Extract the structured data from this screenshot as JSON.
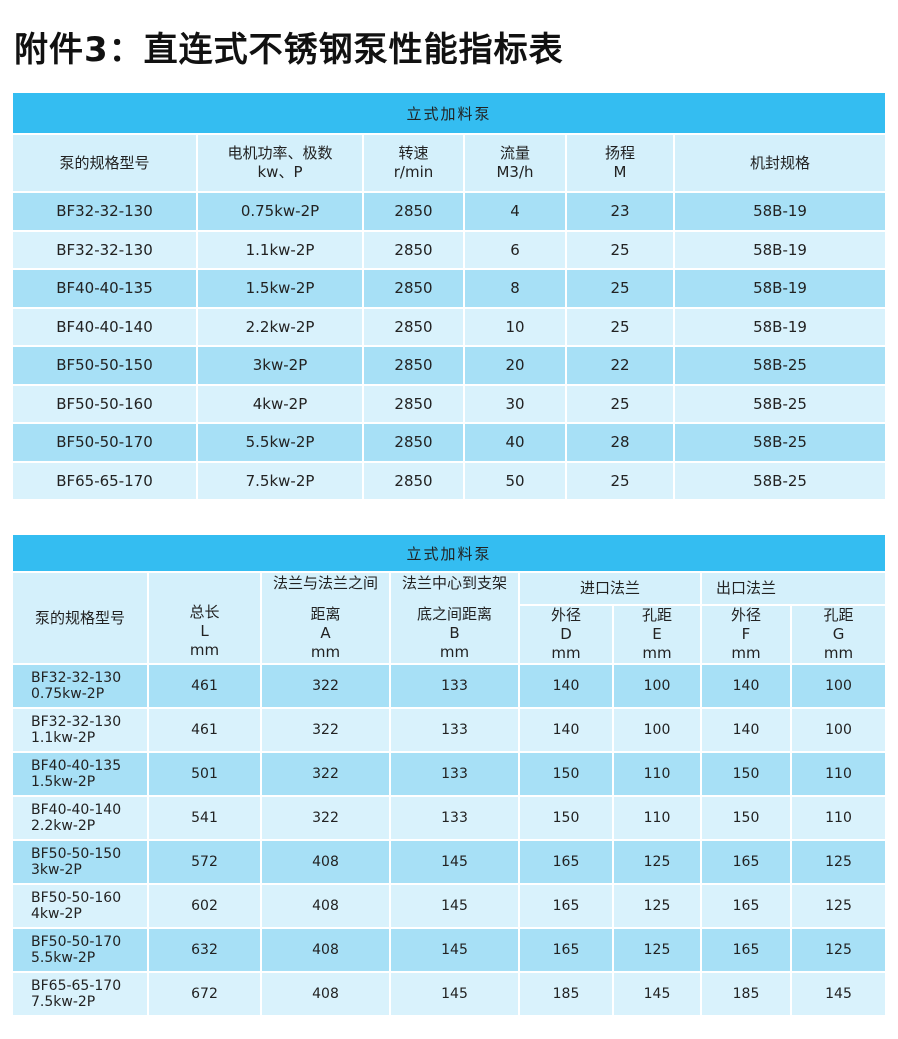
{
  "title": "附件3：直连式不锈钢泵性能指标表",
  "colors": {
    "caption": "#34bdf1",
    "header": "#d4f0fb",
    "row_dark": "#a7e0f6",
    "row_light": "#d9f2fc"
  },
  "table1": {
    "caption": "立式加料泵",
    "headers": [
      [
        "泵的规格型号",
        ""
      ],
      [
        "电机功率、极数",
        "kw、P"
      ],
      [
        "转速",
        "r/min"
      ],
      [
        "流量",
        "M3/h"
      ],
      [
        "扬程",
        "M"
      ],
      [
        "机封规格",
        ""
      ]
    ],
    "rows": [
      [
        "BF32-32-130",
        "0.75kw-2P",
        "2850",
        "4",
        "23",
        "58B-19"
      ],
      [
        "BF32-32-130",
        "1.1kw-2P",
        "2850",
        "6",
        "25",
        "58B-19"
      ],
      [
        "BF40-40-135",
        "1.5kw-2P",
        "2850",
        "8",
        "25",
        "58B-19"
      ],
      [
        "BF40-40-140",
        "2.2kw-2P",
        "2850",
        "10",
        "25",
        "58B-19"
      ],
      [
        "BF50-50-150",
        "3kw-2P",
        "2850",
        "20",
        "22",
        "58B-25"
      ],
      [
        "BF50-50-160",
        "4kw-2P",
        "2850",
        "30",
        "25",
        "58B-25"
      ],
      [
        "BF50-50-170",
        "5.5kw-2P",
        "2850",
        "40",
        "28",
        "58B-25"
      ],
      [
        "BF65-65-170",
        "7.5kw-2P",
        "2850",
        "50",
        "25",
        "58B-25"
      ]
    ]
  },
  "table2": {
    "caption": "立式加料泵",
    "model_header": "泵的规格型号",
    "length_header": [
      "总长",
      "L",
      "mm"
    ],
    "a_header": [
      "法兰与法兰之间",
      "距离",
      "A",
      "mm"
    ],
    "b_header": [
      "法兰中心到支架",
      "底之间距离",
      "B",
      "mm"
    ],
    "inlet_header": "进口法兰",
    "outlet_header": "出口法兰",
    "sub_headers": [
      [
        "外径",
        "D",
        "mm"
      ],
      [
        "孔距",
        "E",
        "mm"
      ],
      [
        "外径",
        "F",
        "mm"
      ],
      [
        "孔距",
        "G",
        "mm"
      ]
    ],
    "rows": [
      [
        "BF32-32-130",
        "0.75kw-2P",
        "461",
        "322",
        "133",
        "140",
        "100",
        "140",
        "100"
      ],
      [
        "BF32-32-130",
        "1.1kw-2P",
        "461",
        "322",
        "133",
        "140",
        "100",
        "140",
        "100"
      ],
      [
        "BF40-40-135",
        "1.5kw-2P",
        "501",
        "322",
        "133",
        "150",
        "110",
        "150",
        "110"
      ],
      [
        "BF40-40-140",
        "2.2kw-2P",
        "541",
        "322",
        "133",
        "150",
        "110",
        "150",
        "110"
      ],
      [
        "BF50-50-150",
        "3kw-2P",
        "572",
        "408",
        "145",
        "165",
        "125",
        "165",
        "125"
      ],
      [
        "BF50-50-160",
        "4kw-2P",
        "602",
        "408",
        "145",
        "165",
        "125",
        "165",
        "125"
      ],
      [
        "BF50-50-170",
        "5.5kw-2P",
        "632",
        "408",
        "145",
        "165",
        "125",
        "165",
        "125"
      ],
      [
        "BF65-65-170",
        "7.5kw-2P",
        "672",
        "408",
        "145",
        "185",
        "145",
        "185",
        "145"
      ]
    ]
  }
}
